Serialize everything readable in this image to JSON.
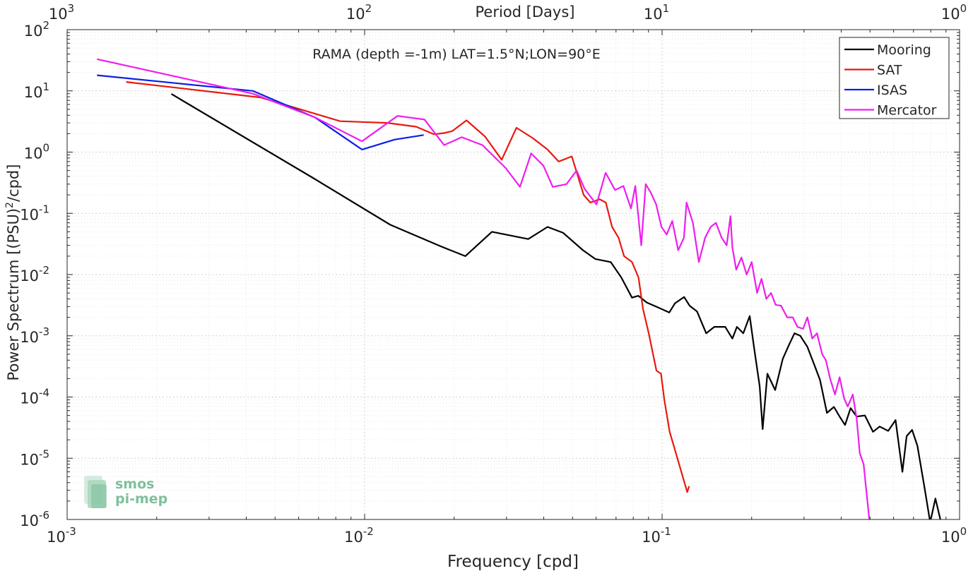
{
  "chart_data": {
    "type": "line",
    "title": "RAMA (depth =-1m) LAT=1.5°N;LON=90°E",
    "xlabel": "Frequency [cpd]",
    "ylabel_main": "Power Spectrum [(PSU)",
    "ylabel_sup": "2",
    "ylabel_tail": "/cpd]",
    "top_xlabel": "Period [Days]",
    "xscale": "log",
    "yscale": "log",
    "xlim": [
      0.001,
      1
    ],
    "ylim": [
      1e-06,
      100
    ],
    "grid": true,
    "legend_position": "top-right",
    "x_ticks": [
      {
        "value": 0.001,
        "base": "10",
        "exp": "-3"
      },
      {
        "value": 0.01,
        "base": "10",
        "exp": "-2"
      },
      {
        "value": 0.1,
        "base": "10",
        "exp": "-1"
      },
      {
        "value": 1,
        "base": "10",
        "exp": "0"
      }
    ],
    "top_ticks": [
      {
        "value": 0.001,
        "base": "10",
        "exp": "3"
      },
      {
        "value": 0.01,
        "base": "10",
        "exp": "2"
      },
      {
        "value": 0.1,
        "base": "10",
        "exp": "1"
      },
      {
        "value": 1,
        "base": "10",
        "exp": "0"
      }
    ],
    "y_ticks": [
      {
        "value": 100,
        "base": "10",
        "exp": "2"
      },
      {
        "value": 10,
        "base": "10",
        "exp": "1"
      },
      {
        "value": 1,
        "base": "10",
        "exp": "0"
      },
      {
        "value": 0.1,
        "base": "10",
        "exp": "-1"
      },
      {
        "value": 0.01,
        "base": "10",
        "exp": "-2"
      },
      {
        "value": 0.001,
        "base": "10",
        "exp": "-3"
      },
      {
        "value": 0.0001,
        "base": "10",
        "exp": "-4"
      },
      {
        "value": 1e-05,
        "base": "10",
        "exp": "-5"
      },
      {
        "value": 1e-06,
        "base": "10",
        "exp": "-6"
      }
    ],
    "logo": {
      "line1": "smos",
      "line2": "pi-mep",
      "color": "#7fbf9c"
    },
    "series": [
      {
        "name": "Mooring",
        "color": "#000000",
        "points": [
          [
            0.00224,
            8.9
          ],
          [
            0.0067,
            0.38
          ],
          [
            0.0122,
            0.065
          ],
          [
            0.018,
            0.029
          ],
          [
            0.0218,
            0.02
          ],
          [
            0.0268,
            0.05
          ],
          [
            0.0355,
            0.038
          ],
          [
            0.0412,
            0.06
          ],
          [
            0.0465,
            0.048
          ],
          [
            0.0542,
            0.025
          ],
          [
            0.0596,
            0.018
          ],
          [
            0.0672,
            0.016
          ],
          [
            0.0729,
            0.009
          ],
          [
            0.0792,
            0.0042
          ],
          [
            0.0832,
            0.0045
          ],
          [
            0.0888,
            0.0035
          ],
          [
            0.097,
            0.0029
          ],
          [
            0.1057,
            0.0024
          ],
          [
            0.1105,
            0.0034
          ],
          [
            0.1186,
            0.0043
          ],
          [
            0.1237,
            0.0031
          ],
          [
            0.131,
            0.0025
          ],
          [
            0.1407,
            0.0011
          ],
          [
            0.1498,
            0.0014
          ],
          [
            0.163,
            0.0014
          ],
          [
            0.1723,
            0.0009
          ],
          [
            0.1785,
            0.0014
          ],
          [
            0.1875,
            0.0011
          ],
          [
            0.197,
            0.0021
          ],
          [
            0.2036,
            0.00066
          ],
          [
            0.2128,
            0.00015
          ],
          [
            0.2178,
            3e-05
          ],
          [
            0.2259,
            0.00024
          ],
          [
            0.2399,
            0.00013
          ],
          [
            0.2545,
            0.00042
          ],
          [
            0.2663,
            0.00069
          ],
          [
            0.2787,
            0.0011
          ],
          [
            0.2915,
            0.001
          ],
          [
            0.3079,
            0.00066
          ],
          [
            0.3223,
            0.00037
          ],
          [
            0.3396,
            0.00019
          ],
          [
            0.3583,
            5.5e-05
          ],
          [
            0.3781,
            6.9e-05
          ],
          [
            0.3951,
            4.8e-05
          ],
          [
            0.4121,
            3.5e-05
          ],
          [
            0.4302,
            6.6e-05
          ],
          [
            0.4509,
            4.8e-05
          ],
          [
            0.4805,
            5e-05
          ],
          [
            0.5118,
            2.7e-05
          ],
          [
            0.5386,
            3.3e-05
          ],
          [
            0.5755,
            2.8e-05
          ],
          [
            0.6094,
            4.2e-05
          ],
          [
            0.6426,
            6e-06
          ],
          [
            0.6638,
            2.3e-05
          ],
          [
            0.6925,
            2.9e-05
          ],
          [
            0.7216,
            1.6e-05
          ],
          [
            0.7631,
            3.2e-06
          ],
          [
            0.7963,
            9e-07
          ],
          [
            0.8294,
            2.2e-06
          ],
          [
            0.8619,
            1e-06
          ]
        ]
      },
      {
        "name": "SAT",
        "color": "#e8190f",
        "points": [
          [
            0.00158,
            14
          ],
          [
            0.00447,
            7.8
          ],
          [
            0.00827,
            3.2
          ],
          [
            0.0119,
            3.0
          ],
          [
            0.0149,
            2.6
          ],
          [
            0.0171,
            1.95
          ],
          [
            0.0185,
            2.05
          ],
          [
            0.0197,
            2.2
          ],
          [
            0.022,
            3.3
          ],
          [
            0.0254,
            1.8
          ],
          [
            0.0289,
            0.75
          ],
          [
            0.0324,
            2.5
          ],
          [
            0.0367,
            1.7
          ],
          [
            0.0412,
            1.1
          ],
          [
            0.0449,
            0.7
          ],
          [
            0.0497,
            0.85
          ],
          [
            0.0545,
            0.2
          ],
          [
            0.0574,
            0.15
          ],
          [
            0.0617,
            0.17
          ],
          [
            0.0647,
            0.15
          ],
          [
            0.0679,
            0.06
          ],
          [
            0.0714,
            0.04
          ],
          [
            0.0745,
            0.02
          ],
          [
            0.0792,
            0.016
          ],
          [
            0.0833,
            0.009
          ],
          [
            0.0863,
            0.0027
          ],
          [
            0.0902,
            0.0011
          ],
          [
            0.0957,
            0.00027
          ],
          [
            0.0992,
            0.00024
          ],
          [
            0.1017,
            9.1e-05
          ],
          [
            0.106,
            2.7e-05
          ],
          [
            0.1108,
            1.3e-05
          ],
          [
            0.1163,
            5.8e-06
          ],
          [
            0.1215,
            2.8e-06
          ],
          [
            0.1233,
            3.5e-06
          ]
        ]
      },
      {
        "name": "ISAS",
        "color": "#0b1fe6",
        "points": [
          [
            0.00126,
            18
          ],
          [
            0.00421,
            10
          ],
          [
            0.0068,
            3.7
          ],
          [
            0.0098,
            1.1
          ],
          [
            0.0126,
            1.6
          ],
          [
            0.0158,
            1.9
          ]
        ]
      },
      {
        "name": "Mercator",
        "color": "#ee1df0",
        "points": [
          [
            0.00126,
            33
          ],
          [
            0.00421,
            9
          ],
          [
            0.0068,
            3.7
          ],
          [
            0.0098,
            1.5
          ],
          [
            0.0129,
            3.9
          ],
          [
            0.0159,
            3.4
          ],
          [
            0.0185,
            1.3
          ],
          [
            0.0212,
            1.75
          ],
          [
            0.0249,
            1.3
          ],
          [
            0.0298,
            0.55
          ],
          [
            0.0333,
            0.27
          ],
          [
            0.0363,
            0.95
          ],
          [
            0.0399,
            0.6
          ],
          [
            0.0429,
            0.27
          ],
          [
            0.0477,
            0.3
          ],
          [
            0.0516,
            0.5
          ],
          [
            0.0549,
            0.25
          ],
          [
            0.0602,
            0.14
          ],
          [
            0.0646,
            0.46
          ],
          [
            0.0695,
            0.24
          ],
          [
            0.0741,
            0.28
          ],
          [
            0.0786,
            0.12
          ],
          [
            0.0813,
            0.28
          ],
          [
            0.0851,
            0.03
          ],
          [
            0.0881,
            0.3
          ],
          [
            0.0915,
            0.22
          ],
          [
            0.0955,
            0.14
          ],
          [
            0.0995,
            0.06
          ],
          [
            0.1036,
            0.045
          ],
          [
            0.1082,
            0.075
          ],
          [
            0.1133,
            0.025
          ],
          [
            0.1184,
            0.04
          ],
          [
            0.1208,
            0.15
          ],
          [
            0.1269,
            0.07
          ],
          [
            0.1329,
            0.016
          ],
          [
            0.1395,
            0.04
          ],
          [
            0.1456,
            0.06
          ],
          [
            0.1517,
            0.07
          ],
          [
            0.1586,
            0.04
          ],
          [
            0.1649,
            0.03
          ],
          [
            0.1698,
            0.09
          ],
          [
            0.1722,
            0.028
          ],
          [
            0.1775,
            0.012
          ],
          [
            0.1848,
            0.019
          ],
          [
            0.1924,
            0.01
          ],
          [
            0.2001,
            0.016
          ],
          [
            0.2087,
            0.005
          ],
          [
            0.2159,
            0.0085
          ],
          [
            0.2241,
            0.004
          ],
          [
            0.2324,
            0.005
          ],
          [
            0.2408,
            0.0032
          ],
          [
            0.2511,
            0.0031
          ],
          [
            0.2633,
            0.002
          ],
          [
            0.2749,
            0.002
          ],
          [
            0.2852,
            0.0014
          ],
          [
            0.2978,
            0.0013
          ],
          [
            0.3079,
            0.002
          ],
          [
            0.3198,
            0.0009
          ],
          [
            0.3316,
            0.0011
          ],
          [
            0.3453,
            0.0005
          ],
          [
            0.3551,
            0.0004
          ],
          [
            0.3671,
            0.0002
          ],
          [
            0.3813,
            0.00011
          ],
          [
            0.3951,
            0.00021
          ],
          [
            0.4091,
            9.5e-05
          ],
          [
            0.4208,
            7e-05
          ],
          [
            0.4375,
            0.00011
          ],
          [
            0.4509,
            4.4e-05
          ],
          [
            0.4619,
            1.2e-05
          ],
          [
            0.4759,
            8e-06
          ],
          [
            0.4884,
            2.3e-06
          ],
          [
            0.4984,
            9e-07
          ],
          [
            0.5035,
            6e-07
          ]
        ]
      }
    ]
  }
}
